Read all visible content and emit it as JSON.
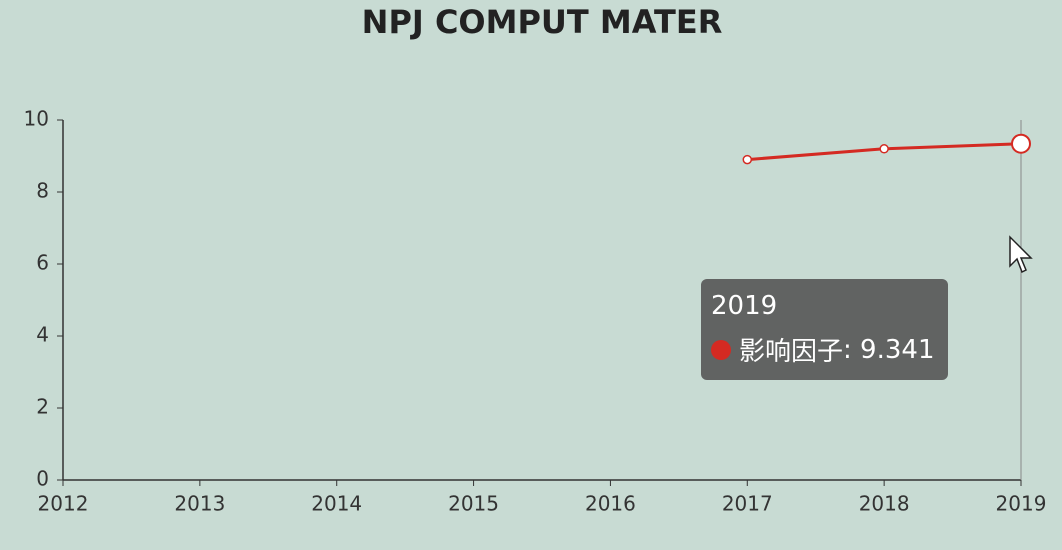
{
  "chart_data": {
    "type": "line",
    "title": "NPJ COMPUT MATER",
    "categories": [
      "2012",
      "2013",
      "2014",
      "2015",
      "2016",
      "2017",
      "2018",
      "2019"
    ],
    "series": [
      {
        "name": "影响因子",
        "color": "#d42a22",
        "values": [
          null,
          null,
          null,
          null,
          null,
          8.9,
          9.2,
          9.341
        ]
      }
    ],
    "ylim": [
      0,
      10
    ],
    "yticks": [
      0,
      2,
      4,
      6,
      8,
      10
    ],
    "grid": false,
    "tooltip": {
      "category_index": 7,
      "separator": ":"
    }
  }
}
